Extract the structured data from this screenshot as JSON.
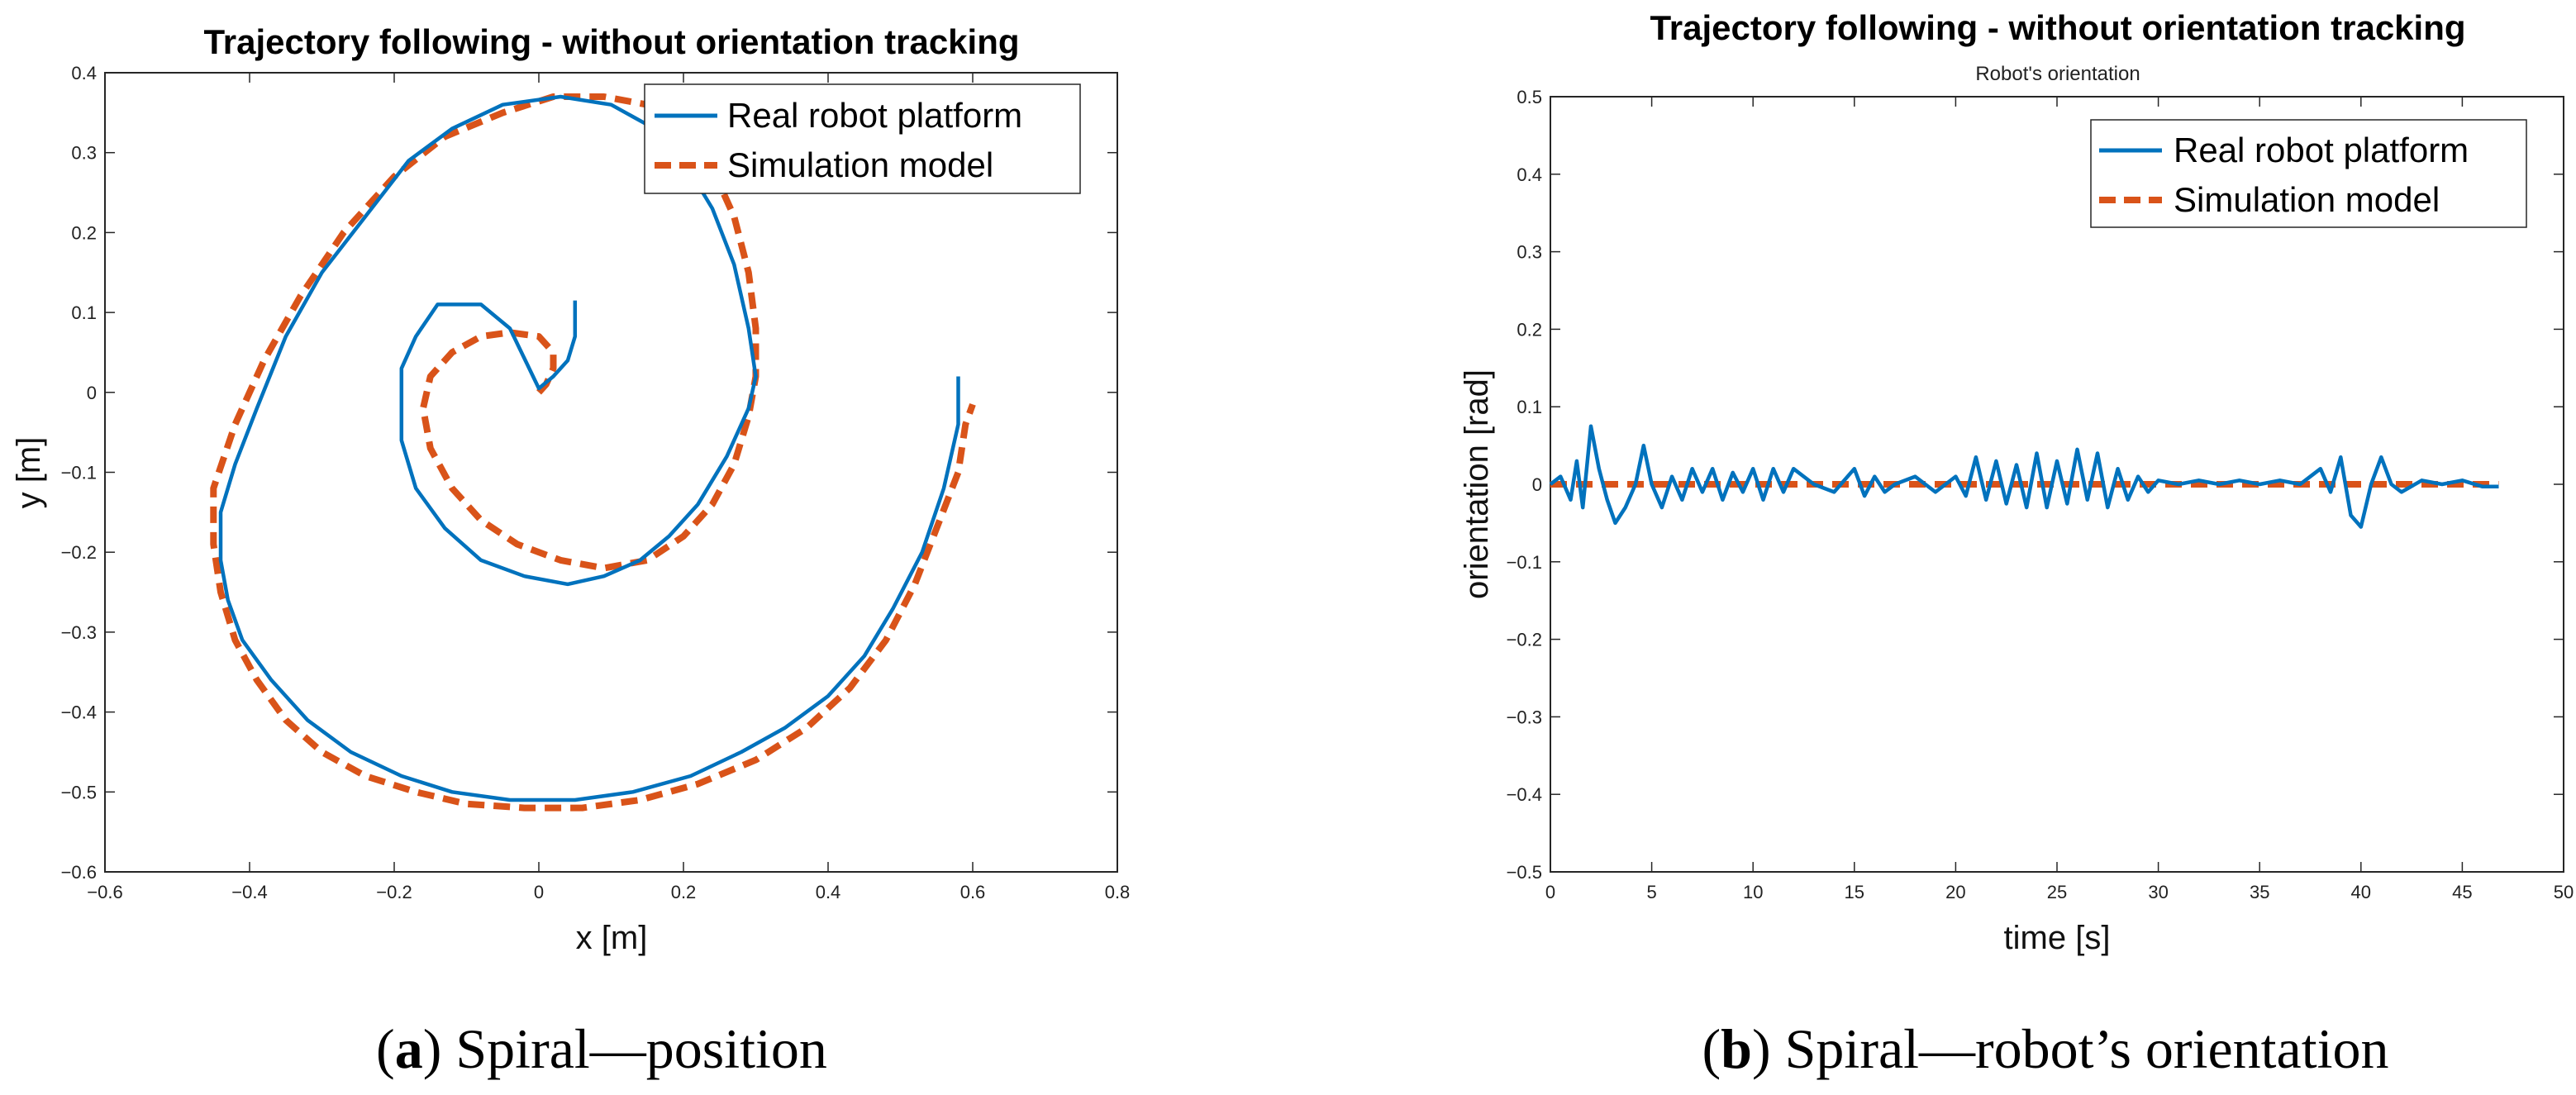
{
  "chart_data": [
    {
      "type": "line",
      "title": "Trajectory following - without orientation tracking",
      "xlabel": "x [m]",
      "ylabel": "y [m]",
      "xlim": [
        -0.6,
        0.8
      ],
      "ylim": [
        -0.6,
        0.4
      ],
      "xticks": [
        -0.6,
        -0.4,
        -0.2,
        0,
        0.2,
        0.4,
        0.6,
        0.8
      ],
      "yticks": [
        -0.6,
        -0.5,
        -0.4,
        -0.3,
        -0.2,
        -0.1,
        0,
        0.1,
        0.2,
        0.3,
        0.4
      ],
      "xtick_labels": [
        "−0.6",
        "−0.4",
        "−0.2",
        "0",
        "0.2",
        "0.4",
        "0.6",
        "0.8"
      ],
      "ytick_labels": [
        "−0.6",
        "−0.5",
        "−0.4",
        "−0.3",
        "−0.2",
        "−0.1",
        "0",
        "0.1",
        "0.2",
        "0.3",
        "0.4"
      ],
      "legend_position": "top-right",
      "series": [
        {
          "name": "Real robot platform",
          "style": "solid",
          "color": "#0072BD",
          "x": [
            0.05,
            0.05,
            0.04,
            0.02,
            0.0,
            -0.04,
            -0.08,
            -0.14,
            -0.17,
            -0.19,
            -0.19,
            -0.17,
            -0.13,
            -0.08,
            -0.02,
            0.04,
            0.09,
            0.14,
            0.18,
            0.22,
            0.26,
            0.29,
            0.3,
            0.29,
            0.27,
            0.24,
            0.2,
            0.16,
            0.1,
            0.03,
            -0.05,
            -0.12,
            -0.18,
            -0.24,
            -0.3,
            -0.35,
            -0.39,
            -0.42,
            -0.44,
            -0.44,
            -0.43,
            -0.41,
            -0.37,
            -0.32,
            -0.26,
            -0.19,
            -0.12,
            -0.04,
            0.05,
            0.13,
            0.21,
            0.28,
            0.34,
            0.4,
            0.45,
            0.49,
            0.53,
            0.56,
            0.58,
            0.58
          ],
          "y": [
            0.115,
            0.07,
            0.04,
            0.02,
            0.005,
            0.08,
            0.11,
            0.11,
            0.07,
            0.03,
            -0.06,
            -0.12,
            -0.17,
            -0.21,
            -0.23,
            -0.24,
            -0.23,
            -0.21,
            -0.18,
            -0.14,
            -0.08,
            -0.02,
            0.02,
            0.08,
            0.16,
            0.23,
            0.29,
            0.33,
            0.36,
            0.37,
            0.36,
            0.33,
            0.29,
            0.22,
            0.15,
            0.07,
            -0.02,
            -0.09,
            -0.15,
            -0.21,
            -0.26,
            -0.31,
            -0.36,
            -0.41,
            -0.45,
            -0.48,
            -0.5,
            -0.51,
            -0.51,
            -0.5,
            -0.48,
            -0.45,
            -0.42,
            -0.38,
            -0.33,
            -0.27,
            -0.2,
            -0.12,
            -0.04,
            0.02
          ]
        },
        {
          "name": "Simulation model",
          "style": "dashed",
          "color": "#D95319",
          "x": [
            0.0,
            0.01,
            0.02,
            0.02,
            0.0,
            -0.04,
            -0.08,
            -0.12,
            -0.15,
            -0.16,
            -0.15,
            -0.12,
            -0.08,
            -0.03,
            0.03,
            0.09,
            0.15,
            0.2,
            0.24,
            0.27,
            0.29,
            0.3,
            0.3,
            0.29,
            0.27,
            0.24,
            0.2,
            0.15,
            0.09,
            0.02,
            -0.05,
            -0.13,
            -0.2,
            -0.27,
            -0.33,
            -0.38,
            -0.42,
            -0.45,
            -0.45,
            -0.44,
            -0.42,
            -0.39,
            -0.35,
            -0.3,
            -0.24,
            -0.17,
            -0.1,
            -0.02,
            0.06,
            0.14,
            0.22,
            0.3,
            0.37,
            0.43,
            0.48,
            0.52,
            0.55,
            0.58,
            0.59,
            0.6
          ],
          "y": [
            0.0,
            0.01,
            0.03,
            0.05,
            0.07,
            0.075,
            0.07,
            0.05,
            0.02,
            -0.02,
            -0.07,
            -0.12,
            -0.16,
            -0.19,
            -0.21,
            -0.22,
            -0.21,
            -0.18,
            -0.14,
            -0.09,
            -0.03,
            0.02,
            0.08,
            0.15,
            0.22,
            0.28,
            0.33,
            0.36,
            0.37,
            0.37,
            0.35,
            0.32,
            0.27,
            0.2,
            0.12,
            0.04,
            -0.04,
            -0.12,
            -0.19,
            -0.25,
            -0.31,
            -0.36,
            -0.41,
            -0.45,
            -0.48,
            -0.5,
            -0.515,
            -0.52,
            -0.52,
            -0.51,
            -0.49,
            -0.46,
            -0.42,
            -0.37,
            -0.31,
            -0.24,
            -0.17,
            -0.1,
            -0.04,
            -0.015
          ]
        }
      ]
    },
    {
      "type": "line",
      "title": "Trajectory following - without orientation tracking",
      "subtitle": "Robot's orientation",
      "xlabel": "time [s]",
      "ylabel": "orientation [rad]",
      "xlim": [
        0,
        50
      ],
      "ylim": [
        -0.5,
        0.5
      ],
      "xticks": [
        0,
        5,
        10,
        15,
        20,
        25,
        30,
        35,
        40,
        45,
        50
      ],
      "yticks": [
        -0.5,
        -0.4,
        -0.3,
        -0.2,
        -0.1,
        0,
        0.1,
        0.2,
        0.3,
        0.4,
        0.5
      ],
      "xtick_labels": [
        "0",
        "5",
        "10",
        "15",
        "20",
        "25",
        "30",
        "35",
        "40",
        "45",
        "50"
      ],
      "ytick_labels": [
        "−0.5",
        "−0.4",
        "−0.3",
        "−0.2",
        "−0.1",
        "0",
        "0.1",
        "0.2",
        "0.3",
        "0.4",
        "0.5"
      ],
      "legend_position": "top-right",
      "series": [
        {
          "name": "Real robot platform",
          "style": "solid",
          "color": "#0072BD",
          "x": [
            0,
            0.5,
            1,
            1.3,
            1.6,
            2.0,
            2.4,
            2.8,
            3.2,
            3.7,
            4.2,
            4.6,
            5.0,
            5.5,
            6.0,
            6.5,
            7.0,
            7.5,
            8.0,
            8.5,
            9.0,
            9.5,
            10.0,
            10.5,
            11.0,
            11.5,
            12.0,
            13.0,
            14.0,
            15.0,
            15.5,
            16.0,
            16.5,
            17.0,
            18.0,
            19.0,
            20.0,
            20.5,
            21.0,
            21.5,
            22.0,
            22.5,
            23.0,
            23.5,
            24.0,
            24.5,
            25.0,
            25.5,
            26.0,
            26.5,
            27.0,
            27.5,
            28.0,
            28.5,
            29.0,
            29.5,
            30.0,
            31.0,
            32.0,
            33.0,
            34.0,
            35.0,
            36.0,
            37.0,
            38.0,
            38.5,
            39.0,
            39.5,
            40.0,
            40.5,
            41.0,
            41.5,
            42.0,
            43.0,
            44.0,
            45.0,
            46.0,
            46.8
          ],
          "y": [
            0,
            0.01,
            -0.02,
            0.03,
            -0.03,
            0.075,
            0.02,
            -0.02,
            -0.05,
            -0.03,
            0.0,
            0.05,
            0.0,
            -0.03,
            0.01,
            -0.02,
            0.02,
            -0.01,
            0.02,
            -0.02,
            0.015,
            -0.01,
            0.02,
            -0.02,
            0.02,
            -0.01,
            0.02,
            0.0,
            -0.01,
            0.02,
            -0.015,
            0.01,
            -0.01,
            0.0,
            0.01,
            -0.01,
            0.01,
            -0.015,
            0.035,
            -0.02,
            0.03,
            -0.025,
            0.025,
            -0.03,
            0.04,
            -0.03,
            0.03,
            -0.025,
            0.045,
            -0.02,
            0.04,
            -0.03,
            0.02,
            -0.02,
            0.01,
            -0.01,
            0.005,
            0.0,
            0.005,
            0.0,
            0.005,
            0.0,
            0.005,
            0.0,
            0.02,
            -0.01,
            0.035,
            -0.04,
            -0.055,
            0.0,
            0.035,
            0.0,
            -0.01,
            0.005,
            0.0,
            0.005,
            -0.003,
            -0.003
          ]
        },
        {
          "name": "Simulation model",
          "style": "dashed",
          "color": "#D95319",
          "x": [
            0,
            46.8
          ],
          "y": [
            0,
            0
          ]
        }
      ]
    }
  ],
  "captions": {
    "a_label": "a",
    "a_text": " Spiral—position",
    "b_label": "b",
    "b_text": " Spiral—robot’s orientation"
  }
}
